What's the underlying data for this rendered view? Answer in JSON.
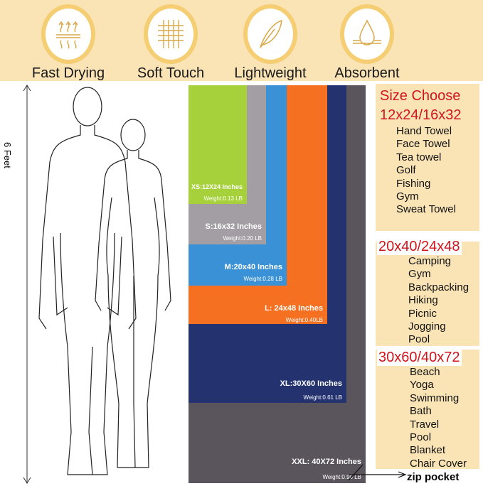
{
  "features": [
    {
      "label": "Fast Drying",
      "icon": "heat-waves-icon"
    },
    {
      "label": "Soft Touch",
      "icon": "fabric-weave-icon"
    },
    {
      "label": "Lightweight",
      "icon": "feather-icon"
    },
    {
      "label": "Absorbent",
      "icon": "water-drop-icon"
    }
  ],
  "height_label": "6 Feet",
  "sizes": [
    {
      "size": "XS:12X24 Inches",
      "weight": "Weight:0.13 LB",
      "color": "#a6d13b"
    },
    {
      "size": "S:16x32 Inches",
      "weight": "Weight:0.20 LB",
      "color": "#a29ea3"
    },
    {
      "size": "M:20x40 Inches",
      "weight": "Weight:0.28 LB",
      "color": "#3a91d6"
    },
    {
      "size": "L: 24x48 Inches",
      "weight": "Weight:0.40LB",
      "color": "#f57021"
    },
    {
      "size": "XL:30X60 Inches",
      "weight": "Weight:0.61 LB",
      "color": "#24336f"
    },
    {
      "size": "XXL: 40X72 Inches",
      "weight": "Weight:0.90 LB",
      "color": "#5a555d"
    }
  ],
  "zip_label": "zip pocket",
  "size_choose": "Size Choose",
  "groups": [
    {
      "title": "12x24/16x32",
      "uses": [
        "Hand Towel",
        "Face Towel",
        "Tea towel",
        "Golf",
        "Fishing",
        "Gym",
        "Sweat Towel"
      ]
    },
    {
      "title": "20x40/24x48",
      "uses": [
        "Camping",
        "Gym",
        "Backpacking",
        "Hiking",
        "Picnic",
        "Jogging",
        "Pool"
      ]
    },
    {
      "title": "30x60/40x72",
      "uses": [
        "Beach",
        "Yoga",
        "Swimming",
        "Bath",
        "Travel",
        "Pool",
        "Blanket",
        "Chair Cover"
      ]
    }
  ]
}
